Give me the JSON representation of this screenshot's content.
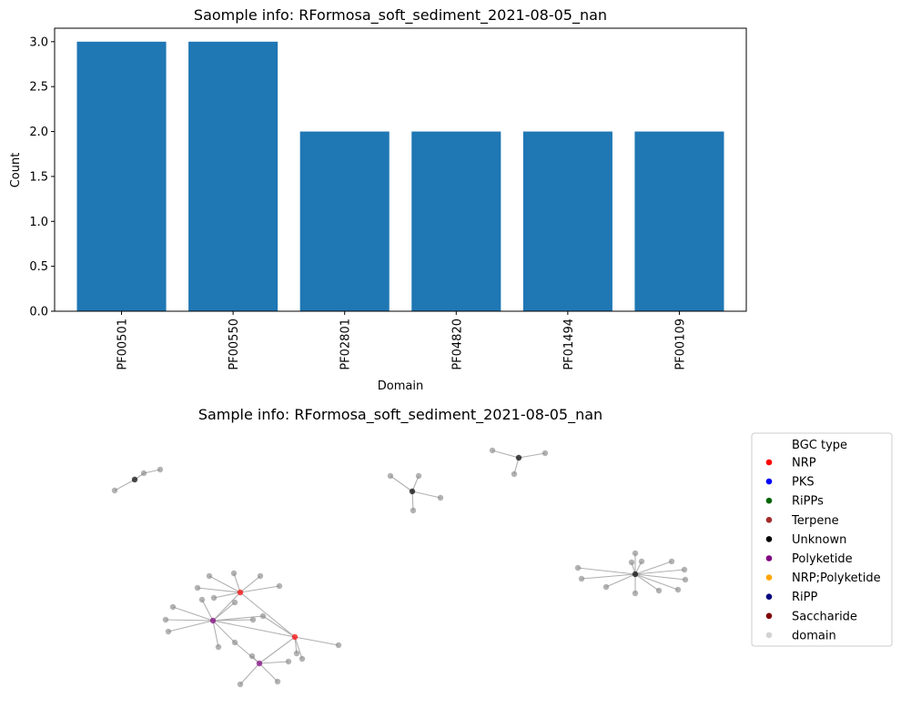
{
  "chart_data": [
    {
      "type": "bar",
      "title": "Saomple info: RFormosa_soft_sediment_2021-08-05_nan",
      "xlabel": "Domain",
      "ylabel": "Count",
      "categories": [
        "PF00501",
        "PF00550",
        "PF02801",
        "PF04820",
        "PF01494",
        "PF00109"
      ],
      "values": [
        3,
        3,
        2,
        2,
        2,
        2
      ],
      "ylim": [
        0,
        3.15
      ],
      "yticks": [
        "0.0",
        "0.5",
        "1.0",
        "1.5",
        "2.0",
        "2.5",
        "3.0"
      ],
      "bar_color": "#1f77b4",
      "grid": false
    },
    {
      "type": "network",
      "title": "Sample info: RFormosa_soft_sediment_2021-08-05_nan",
      "legend": {
        "title": "BGC type",
        "placement": "right",
        "items": [
          {
            "label": "NRP",
            "color": "#ff0000"
          },
          {
            "label": "PKS",
            "color": "#0000ff"
          },
          {
            "label": "RiPPs",
            "color": "#006400"
          },
          {
            "label": "Terpene",
            "color": "#a52a2a"
          },
          {
            "label": "Unknown",
            "color": "#000000"
          },
          {
            "label": "Polyketide",
            "color": "#800080"
          },
          {
            "label": "NRP;Polyketide",
            "color": "#ffa500"
          },
          {
            "label": "RiPP",
            "color": "#000080"
          },
          {
            "label": "Saccharide",
            "color": "#800000"
          },
          {
            "label": "domain",
            "color": "#d3d3d3"
          }
        ]
      }
    }
  ]
}
